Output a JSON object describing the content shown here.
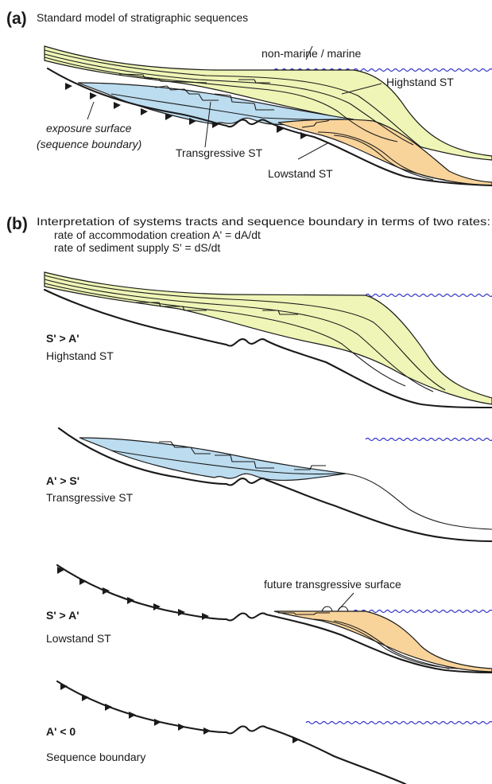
{
  "colors": {
    "highstand_fill": "#eef5b6",
    "transgressive_fill": "#bcdcef",
    "lowstand_fill": "#f8d39a",
    "sea_level": "#3535c8",
    "line": "#1a1a1a"
  },
  "panel_a": {
    "tag": "(a)",
    "title": "Standard model of stratigraphic sequences",
    "label_facies_boundary": "non-marine / marine",
    "label_highstand": "Highstand ST",
    "label_transgressive": "Transgressive ST",
    "label_lowstand": "Lowstand ST",
    "label_exposure_line1": "exposure surface",
    "label_exposure_line2": "(sequence boundary)"
  },
  "panel_b": {
    "tag": "(b)",
    "title": "Interpretation of systems tracts and sequence boundary in terms of two rates:",
    "rate_line_1": "rate of accommodation creation A' = dA/dt",
    "rate_line_2": "rate of sediment supply S' = dS/dt",
    "cases": [
      {
        "condition": "S' > A'",
        "label": "Highstand ST"
      },
      {
        "condition": "A' > S'",
        "label": "Transgressive ST"
      },
      {
        "condition": "S' > A'",
        "label": "Lowstand ST"
      },
      {
        "condition": "A' < 0",
        "label": "Sequence boundary"
      }
    ],
    "label_future_surface": "future transgressive surface"
  }
}
